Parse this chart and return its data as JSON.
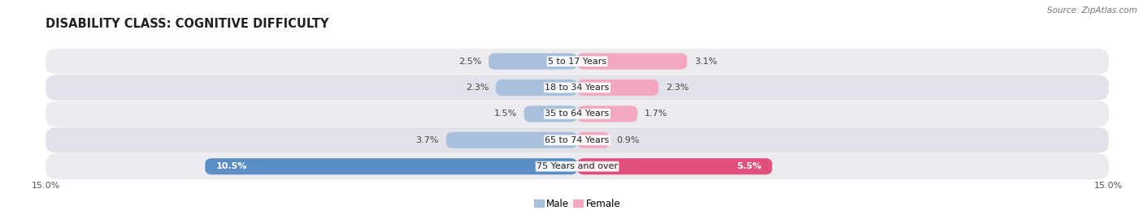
{
  "title": "DISABILITY CLASS: COGNITIVE DIFFICULTY",
  "source": "Source: ZipAtlas.com",
  "categories": [
    "5 to 17 Years",
    "18 to 34 Years",
    "35 to 64 Years",
    "65 to 74 Years",
    "75 Years and over"
  ],
  "male_values": [
    2.5,
    2.3,
    1.5,
    3.7,
    10.5
  ],
  "female_values": [
    3.1,
    2.3,
    1.7,
    0.9,
    5.5
  ],
  "male_color_light": "#a8c0dc",
  "male_color_dark": "#5b8ec4",
  "female_color_light": "#f2a8be",
  "female_color_dark": "#e0507a",
  "row_bg_color": "#ebebf0",
  "row_alt_color": "#e2e2ea",
  "max_value": 15.0,
  "bar_height": 0.62,
  "title_fontsize": 10.5,
  "label_fontsize": 8.0,
  "tick_fontsize": 8.0,
  "legend_fontsize": 8.5,
  "source_fontsize": 7.5
}
